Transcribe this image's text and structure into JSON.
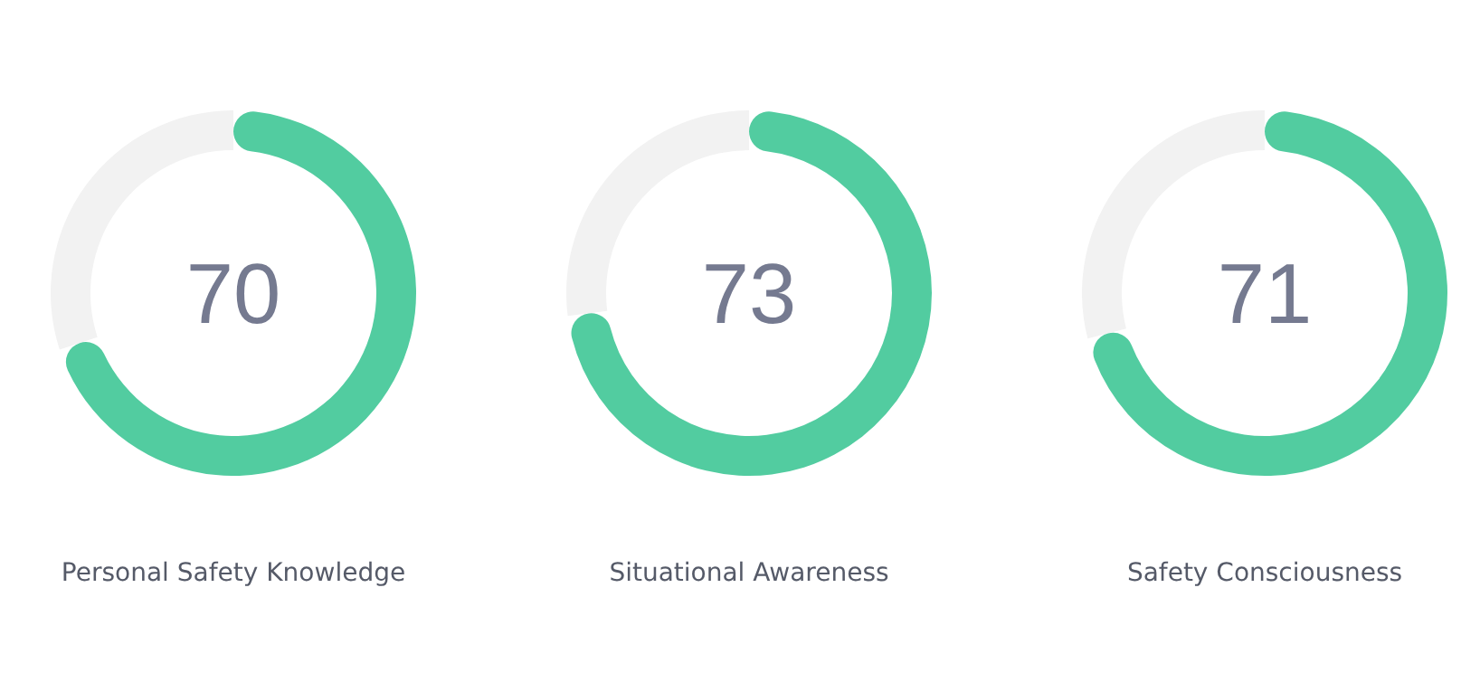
{
  "chart_data": [
    {
      "type": "donut",
      "xlabel": "Personal Safety Knowledge",
      "categories": [
        null,
        null
      ],
      "values": [
        70,
        30
      ],
      "colors": [
        "#52cca0",
        "#f2f2f2"
      ],
      "annotations": [
        "70"
      ]
    },
    {
      "type": "donut",
      "xlabel": "Situational Awareness",
      "categories": [
        null,
        null
      ],
      "values": [
        73,
        27
      ],
      "colors": [
        "#52cca0",
        "#f2f2f2"
      ],
      "annotations": [
        "73"
      ]
    },
    {
      "type": "donut",
      "xlabel": "Safety Consciousness",
      "categories": [
        null,
        null
      ],
      "values": [
        71,
        29
      ],
      "colors": [
        "#52cca0",
        "#f2f2f2"
      ],
      "annotations": [
        "71"
      ]
    }
  ]
}
